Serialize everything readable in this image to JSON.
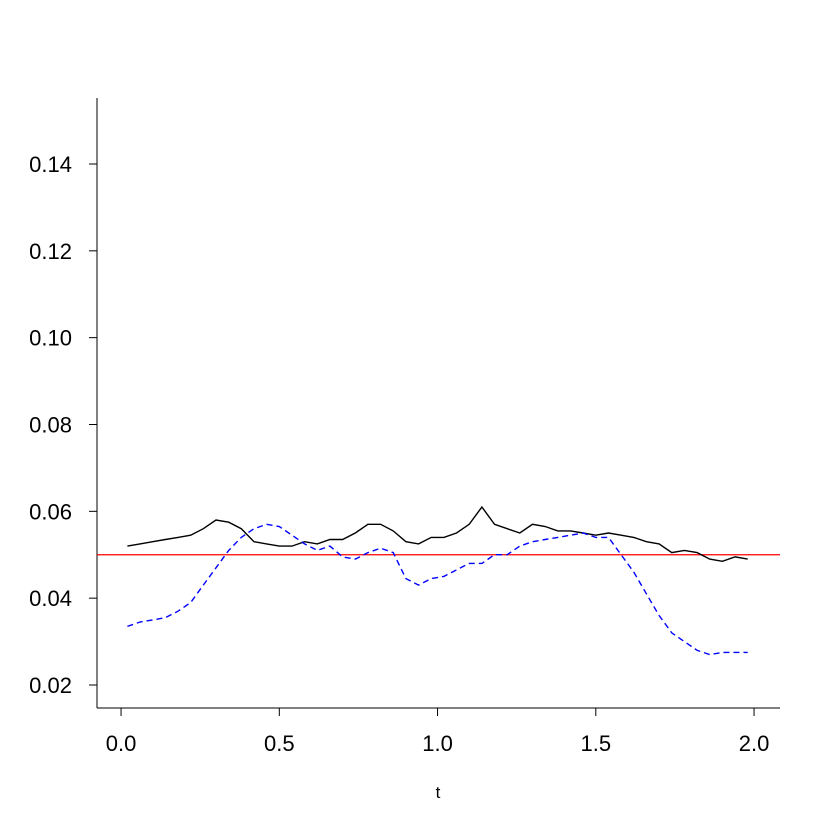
{
  "chart_data": {
    "type": "line",
    "x_label": "t",
    "x": [
      0.02,
      0.06,
      0.1,
      0.14,
      0.18,
      0.22,
      0.26,
      0.3,
      0.34,
      0.38,
      0.42,
      0.46,
      0.5,
      0.54,
      0.58,
      0.62,
      0.66,
      0.7,
      0.74,
      0.78,
      0.82,
      0.86,
      0.9,
      0.94,
      0.98,
      1.02,
      1.06,
      1.1,
      1.14,
      1.18,
      1.22,
      1.26,
      1.3,
      1.34,
      1.38,
      1.42,
      1.46,
      1.5,
      1.54,
      1.58,
      1.62,
      1.66,
      1.7,
      1.74,
      1.78,
      1.82,
      1.86,
      1.9,
      1.94,
      1.98
    ],
    "series": [
      {
        "color": "#000000",
        "dash": false,
        "values": [
          0.052,
          0.0525,
          0.053,
          0.0535,
          0.054,
          0.0545,
          0.056,
          0.058,
          0.0575,
          0.056,
          0.053,
          0.0525,
          0.052,
          0.052,
          0.053,
          0.0525,
          0.0535,
          0.0535,
          0.055,
          0.057,
          0.057,
          0.0555,
          0.053,
          0.0525,
          0.054,
          0.054,
          0.055,
          0.057,
          0.061,
          0.057,
          0.056,
          0.055,
          0.057,
          0.0565,
          0.0555,
          0.0555,
          0.055,
          0.0545,
          0.055,
          0.0545,
          0.054,
          0.053,
          0.0525,
          0.0505,
          0.051,
          0.0505,
          0.049,
          0.0485,
          0.0495,
          0.049
        ]
      },
      {
        "color": "#0000ff",
        "dash": true,
        "values": [
          0.0335,
          0.0345,
          0.035,
          0.0355,
          0.037,
          0.039,
          0.043,
          0.047,
          0.051,
          0.054,
          0.056,
          0.057,
          0.0565,
          0.0545,
          0.0525,
          0.051,
          0.052,
          0.0495,
          0.049,
          0.0505,
          0.0515,
          0.0505,
          0.0445,
          0.043,
          0.0445,
          0.045,
          0.0465,
          0.048,
          0.048,
          0.05,
          0.05,
          0.052,
          0.053,
          0.0535,
          0.054,
          0.0545,
          0.055,
          0.054,
          0.054,
          0.05,
          0.046,
          0.041,
          0.036,
          0.032,
          0.03,
          0.028,
          0.027,
          0.0275,
          0.0275,
          0.0275
        ]
      }
    ],
    "hline": {
      "value": 0.05,
      "color": "#ff0000"
    },
    "xlim": [
      -0.076,
      2.082
    ],
    "ylim": [
      0.0147,
      0.1552
    ],
    "xticks": [
      {
        "value": 0,
        "label": "0.0"
      },
      0.5,
      {
        "value": 1,
        "label": "1.0"
      },
      1.5,
      {
        "value": 2,
        "label": "2.0"
      }
    ],
    "yticks": [
      0.02,
      0.04,
      0.06,
      0.08,
      {
        "value": 0.1,
        "label": "0.10"
      },
      0.12,
      0.14
    ]
  }
}
